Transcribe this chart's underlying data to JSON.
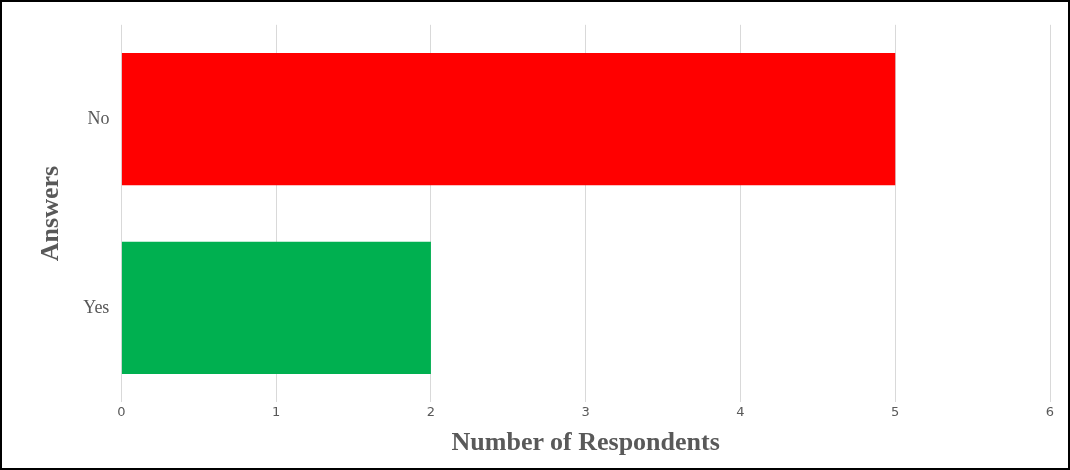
{
  "chart_data": {
    "type": "bar",
    "orientation": "horizontal",
    "xlabel": "Number of Respondents",
    "ylabel": "Answers",
    "categories": [
      "No",
      "Yes"
    ],
    "values": [
      5,
      2
    ],
    "colors": [
      "#ff0000",
      "#00b050"
    ],
    "xlim": [
      0,
      6
    ],
    "xticks": [
      0,
      1,
      2,
      3,
      4,
      5,
      6
    ],
    "grid": "x",
    "legend": false
  }
}
